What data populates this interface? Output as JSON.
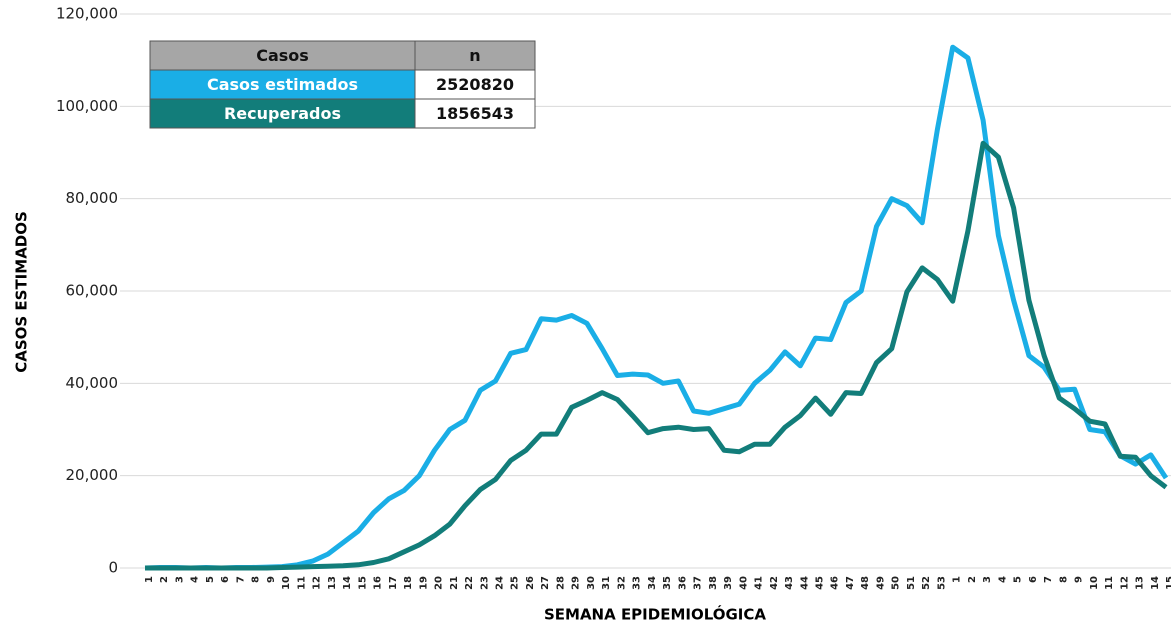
{
  "chart_data": {
    "type": "line",
    "xlabel": "SEMANA EPIDEMIOLÓGICA",
    "ylabel": "CASOS ESTIMADOS",
    "categories": [
      "1",
      "2",
      "3",
      "4",
      "5",
      "6",
      "7",
      "8",
      "9",
      "10",
      "11",
      "12",
      "13",
      "14",
      "15",
      "16",
      "17",
      "18",
      "19",
      "20",
      "21",
      "22",
      "23",
      "24",
      "25",
      "26",
      "27",
      "28",
      "29",
      "30",
      "31",
      "32",
      "33",
      "34",
      "35",
      "36",
      "37",
      "38",
      "39",
      "40",
      "41",
      "42",
      "43",
      "44",
      "45",
      "46",
      "47",
      "48",
      "49",
      "50",
      "51",
      "52",
      "53",
      "1",
      "2",
      "3",
      "4",
      "5",
      "6",
      "7",
      "8",
      "9",
      "10",
      "11",
      "12",
      "13",
      "14",
      "15"
    ],
    "series": [
      {
        "name": "Casos estimados",
        "color": "#1aaee6",
        "values": [
          0,
          100,
          100,
          0,
          100,
          0,
          100,
          100,
          200,
          300,
          700,
          1500,
          3000,
          5500,
          8000,
          12000,
          15000,
          16800,
          20000,
          25500,
          30000,
          32000,
          38500,
          40500,
          46500,
          47300,
          54000,
          53700,
          54700,
          53000,
          47500,
          41700,
          42000,
          41800,
          40000,
          40500,
          34000,
          33500,
          34500,
          35500,
          40000,
          42800,
          46800,
          43800,
          49800,
          49500,
          57500,
          60000,
          74000,
          80000,
          78500,
          74800,
          95000,
          112800,
          110500,
          97000,
          72000,
          58000,
          46000,
          43500,
          38500,
          38700,
          30000,
          29500,
          24300,
          22500,
          24500,
          19500
        ]
      },
      {
        "name": "Recuperados",
        "color": "#127d7a",
        "values": [
          0,
          0,
          0,
          0,
          0,
          0,
          0,
          0,
          0,
          100,
          200,
          300,
          400,
          500,
          700,
          1200,
          2000,
          3500,
          5000,
          7000,
          9500,
          13500,
          17000,
          19200,
          23300,
          25500,
          29000,
          29000,
          34800,
          36300,
          38000,
          36500,
          33000,
          29300,
          30200,
          30500,
          30000,
          30200,
          25500,
          25200,
          26800,
          26800,
          30500,
          33000,
          36800,
          33300,
          38000,
          37800,
          44500,
          47500,
          59800,
          65000,
          62500,
          57800,
          73000,
          92000,
          89000,
          78000,
          58000,
          46000,
          36800,
          34500,
          31800,
          31200,
          24200,
          24000,
          20000,
          17500
        ]
      }
    ],
    "ylim": [
      0,
      120000
    ],
    "yticks": [
      0,
      {
        "value": 20000,
        "label": "20,000"
      },
      {
        "value": 40000,
        "label": "40,000"
      },
      {
        "value": 60000,
        "label": "60,000"
      },
      {
        "value": 80000,
        "label": "80,000"
      },
      {
        "value": 100000,
        "label": "100,000"
      },
      {
        "value": 120000,
        "label": "120,000"
      }
    ],
    "grid": true,
    "table": {
      "header": [
        "Casos",
        "n"
      ],
      "rows": [
        [
          "Casos estimados",
          2520820
        ],
        [
          "Recuperados",
          1856543
        ]
      ]
    }
  }
}
